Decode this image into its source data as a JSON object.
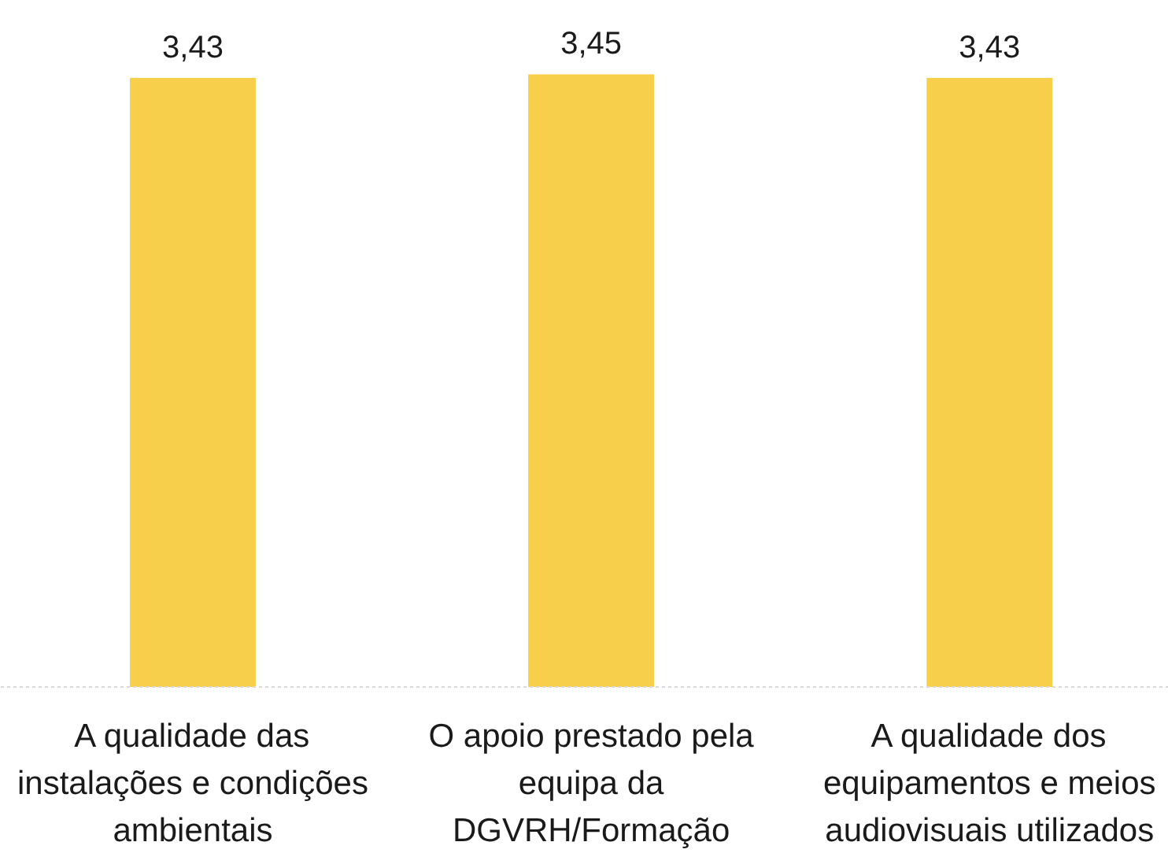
{
  "chart_data": {
    "type": "bar",
    "categories": [
      "A qualidade das instalações e condições ambientais",
      "O apoio prestado pela equipa da DGVRH/Formação",
      "A qualidade dos equipamentos e meios audiovisuais utilizados"
    ],
    "values": [
      3.43,
      3.45,
      3.43
    ],
    "value_labels": [
      "3,43",
      "3,45",
      "3,43"
    ],
    "color": "#f8cf4a",
    "tick_labels": "x"
  }
}
